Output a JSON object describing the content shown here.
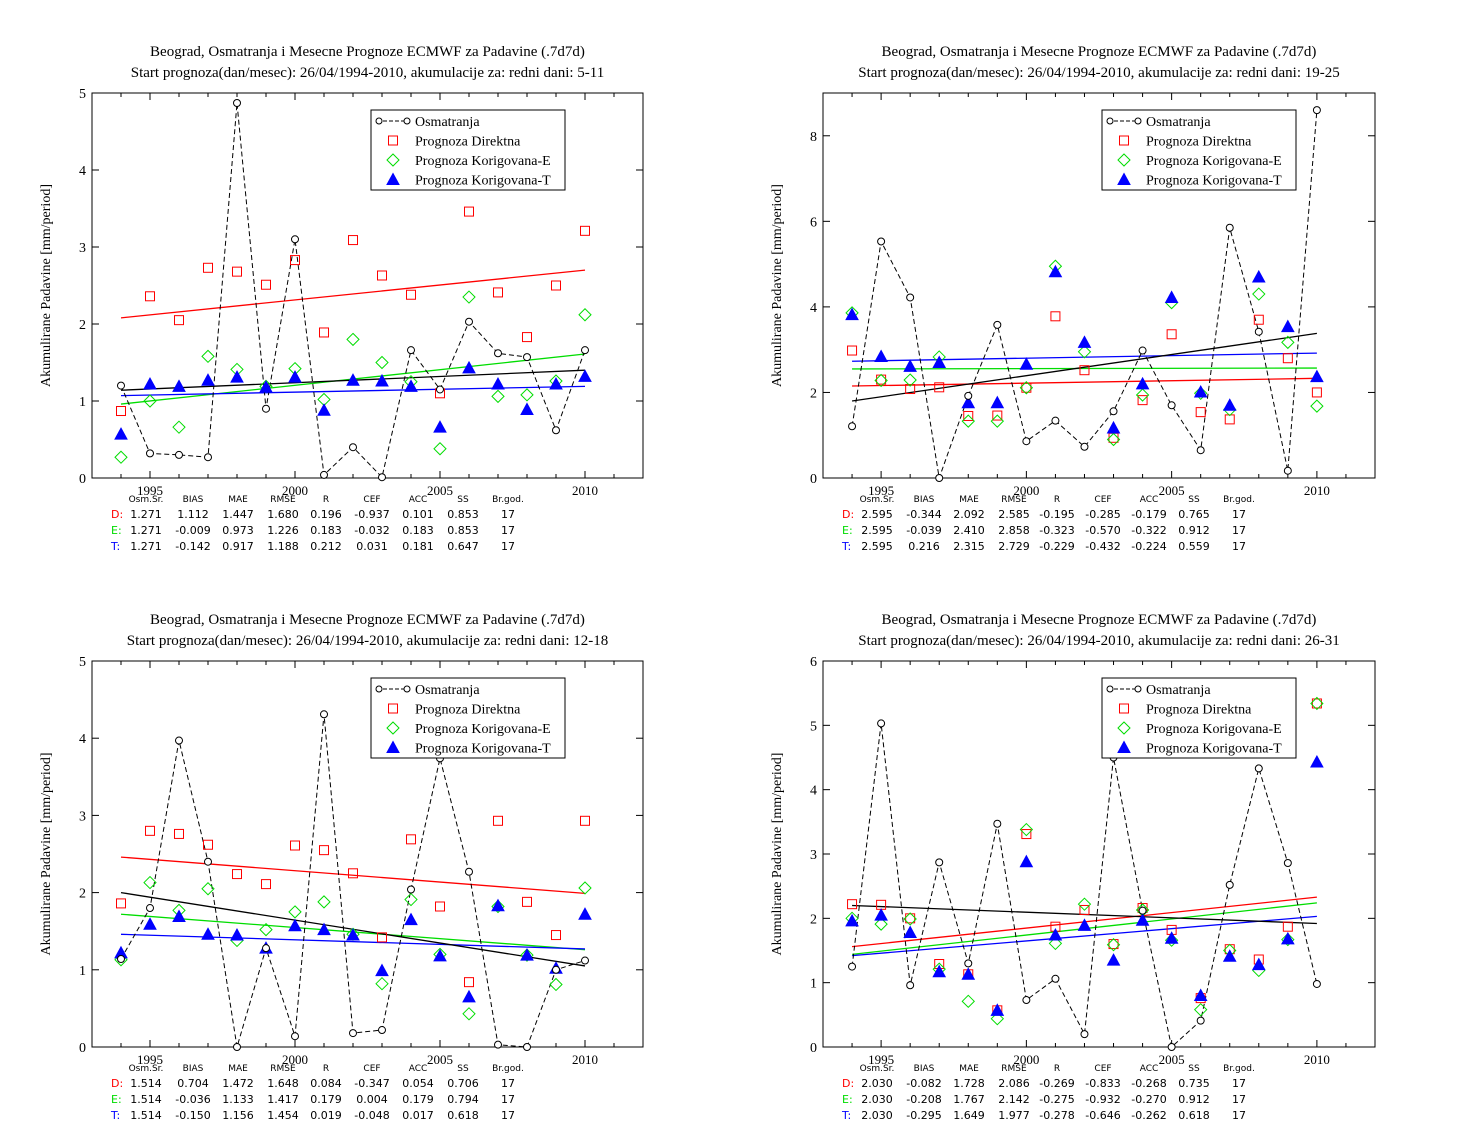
{
  "legend": {
    "obs": "Osmatranja",
    "direct": "Prognoza Direktna",
    "corrE": "Prognoza Korigovana-E",
    "corrT": "Prognoza Korigovana-T"
  },
  "colors": {
    "obs": "#000000",
    "direct": "#ff0000",
    "corrE": "#00dd00",
    "corrT": "#0000ff"
  },
  "stats_header": [
    "Osm.Sr.",
    "BIAS",
    "MAE",
    "RMSE",
    "R",
    "CEF",
    "ACC",
    "SS",
    "Br.god."
  ],
  "chart_data": [
    {
      "type": "scatter",
      "title": "Beograd, Osmatranja i Mesecne Prognoze ECMWF za Padavine (.7d7d)",
      "subtitle": "Start prognoza(dan/mesec): 26/04/1994-2010, akumulacije za: redni dani: 5-11",
      "ylabel": "Akumulirane Padavine [mm/period]",
      "xlim": [
        1993,
        2012
      ],
      "ylim": [
        0,
        5
      ],
      "yticks": [
        0,
        1,
        2,
        3,
        4,
        5
      ],
      "xticks": [
        1995,
        2000,
        2005,
        2010
      ],
      "x": [
        1994,
        1995,
        1996,
        1997,
        1998,
        1999,
        2000,
        2001,
        2002,
        2003,
        2004,
        2005,
        2006,
        2007,
        2008,
        2009,
        2010
      ],
      "series": [
        {
          "name": "Osmatranja",
          "values": [
            1.2,
            0.32,
            0.3,
            0.27,
            4.87,
            0.9,
            3.1,
            0.04,
            0.4,
            0.01,
            1.66,
            1.15,
            2.03,
            1.62,
            1.57,
            0.62,
            1.66
          ]
        },
        {
          "name": "Prognoza Direktna",
          "values": [
            0.87,
            2.36,
            2.05,
            2.73,
            2.68,
            2.51,
            2.83,
            1.89,
            3.09,
            2.63,
            2.38,
            1.1,
            3.46,
            2.41,
            1.83,
            2.5,
            3.21
          ]
        },
        {
          "name": "Prognoza Korigovana-E",
          "values": [
            0.27,
            1.0,
            0.66,
            1.58,
            1.41,
            1.19,
            1.42,
            1.02,
            1.8,
            1.5,
            1.25,
            0.38,
            2.35,
            1.06,
            1.08,
            1.26,
            2.12
          ]
        },
        {
          "name": "Prognoza Korigovana-T",
          "values": [
            0.57,
            1.22,
            1.19,
            1.27,
            1.31,
            1.18,
            1.31,
            0.88,
            1.27,
            1.26,
            1.19,
            0.66,
            1.43,
            1.22,
            0.89,
            1.22,
            1.32
          ]
        }
      ],
      "trends": {
        "obs": [
          1.14,
          1.4
        ],
        "direct": [
          2.08,
          2.7
        ],
        "corrE": [
          0.96,
          1.61
        ],
        "corrT": [
          1.07,
          1.19
        ]
      },
      "stats": [
        {
          "label": "D:",
          "values": [
            "1.271",
            "1.112",
            "1.447",
            "1.680",
            "0.196",
            "-0.937",
            "0.101",
            "0.853",
            "17"
          ]
        },
        {
          "label": "E:",
          "values": [
            "1.271",
            "-0.009",
            "0.973",
            "1.226",
            "0.183",
            "-0.032",
            "0.183",
            "0.853",
            "17"
          ]
        },
        {
          "label": "T:",
          "values": [
            "1.271",
            "-0.142",
            "0.917",
            "1.188",
            "0.212",
            "0.031",
            "0.181",
            "0.647",
            "17"
          ]
        }
      ]
    },
    {
      "type": "scatter",
      "title": "Beograd, Osmatranja i Mesecne Prognoze ECMWF za Padavine (.7d7d)",
      "subtitle": "Start prognoza(dan/mesec): 26/04/1994-2010, akumulacije za: redni dani: 19-25",
      "ylabel": "Akumulirane Padavine [mm/period]",
      "xlim": [
        1993,
        2012
      ],
      "ylim": [
        0,
        9
      ],
      "yticks": [
        0,
        2,
        4,
        6,
        8
      ],
      "xticks": [
        1995,
        2000,
        2005,
        2010
      ],
      "x": [
        1994,
        1995,
        1996,
        1997,
        1998,
        1999,
        2000,
        2001,
        2002,
        2003,
        2004,
        2005,
        2006,
        2007,
        2008,
        2009,
        2010
      ],
      "series": [
        {
          "name": "Osmatranja",
          "values": [
            1.21,
            5.53,
            4.22,
            0.0,
            1.92,
            3.58,
            0.86,
            1.34,
            0.73,
            1.56,
            2.98,
            1.7,
            0.65,
            5.85,
            3.42,
            0.17,
            8.6
          ]
        },
        {
          "name": "Prognoza Direktna",
          "values": [
            2.98,
            2.3,
            2.08,
            2.12,
            1.45,
            1.46,
            2.11,
            3.78,
            2.52,
            0.94,
            1.82,
            3.36,
            1.54,
            1.37,
            3.7,
            2.8,
            2.0
          ]
        },
        {
          "name": "Prognoza Korigovana-E",
          "values": [
            3.86,
            2.28,
            2.29,
            2.83,
            1.33,
            1.33,
            2.11,
            4.95,
            2.95,
            0.9,
            1.94,
            4.1,
            1.98,
            1.6,
            4.3,
            3.17,
            1.68
          ]
        },
        {
          "name": "Prognoza Korigovana-T",
          "values": [
            3.82,
            2.84,
            2.61,
            2.7,
            1.76,
            1.76,
            2.66,
            4.82,
            3.17,
            1.17,
            2.2,
            4.22,
            2.01,
            1.7,
            4.7,
            3.54,
            2.37
          ]
        }
      ],
      "trends": {
        "obs": [
          1.8,
          3.38
        ],
        "direct": [
          2.15,
          2.33
        ],
        "corrE": [
          2.55,
          2.57
        ],
        "corrT": [
          2.73,
          2.92
        ]
      },
      "stats": [
        {
          "label": "D:",
          "values": [
            "2.595",
            "-0.344",
            "2.092",
            "2.585",
            "-0.195",
            "-0.285",
            "-0.179",
            "0.765",
            "17"
          ]
        },
        {
          "label": "E:",
          "values": [
            "2.595",
            "-0.039",
            "2.410",
            "2.858",
            "-0.323",
            "-0.570",
            "-0.322",
            "0.912",
            "17"
          ]
        },
        {
          "label": "T:",
          "values": [
            "2.595",
            "0.216",
            "2.315",
            "2.729",
            "-0.229",
            "-0.432",
            "-0.224",
            "0.559",
            "17"
          ]
        }
      ]
    },
    {
      "type": "scatter",
      "title": "Beograd, Osmatranja i Mesecne Prognoze ECMWF za Padavine (.7d7d)",
      "subtitle": "Start prognoza(dan/mesec): 26/04/1994-2010, akumulacije za: redni dani: 12-18",
      "ylabel": "Akumulirane Padavine [mm/period]",
      "xlim": [
        1993,
        2012
      ],
      "ylim": [
        0,
        5
      ],
      "yticks": [
        0,
        1,
        2,
        3,
        4,
        5
      ],
      "xticks": [
        1995,
        2000,
        2005,
        2010
      ],
      "x": [
        1994,
        1995,
        1996,
        1997,
        1998,
        1999,
        2000,
        2001,
        2002,
        2003,
        2004,
        2005,
        2006,
        2007,
        2008,
        2009,
        2010
      ],
      "series": [
        {
          "name": "Osmatranja",
          "values": [
            1.14,
            1.8,
            3.97,
            2.4,
            0.0,
            1.28,
            0.14,
            4.31,
            0.18,
            0.22,
            2.04,
            3.74,
            2.27,
            0.03,
            0.0,
            1.0,
            1.12
          ]
        },
        {
          "name": "Prognoza Direktna",
          "values": [
            1.86,
            2.8,
            2.76,
            2.62,
            2.24,
            2.11,
            2.61,
            2.55,
            2.25,
            1.42,
            2.69,
            1.82,
            0.84,
            2.93,
            1.88,
            1.45,
            2.93
          ]
        },
        {
          "name": "Prognoza Korigovana-E",
          "values": [
            1.13,
            2.13,
            1.77,
            2.05,
            1.38,
            1.52,
            1.75,
            1.88,
            1.46,
            0.82,
            1.91,
            1.2,
            0.43,
            1.82,
            1.19,
            0.81,
            2.06
          ]
        },
        {
          "name": "Prognoza Korigovana-T",
          "values": [
            1.22,
            1.59,
            1.69,
            1.46,
            1.45,
            1.28,
            1.57,
            1.52,
            1.45,
            0.99,
            1.65,
            1.18,
            0.65,
            1.83,
            1.19,
            1.02,
            1.72
          ]
        }
      ],
      "trends": {
        "obs": [
          2.0,
          1.05
        ],
        "direct": [
          2.46,
          1.99
        ],
        "corrE": [
          1.72,
          1.26
        ],
        "corrT": [
          1.46,
          1.27
        ]
      },
      "stats": [
        {
          "label": "D:",
          "values": [
            "1.514",
            "0.704",
            "1.472",
            "1.648",
            "0.084",
            "-0.347",
            "0.054",
            "0.706",
            "17"
          ]
        },
        {
          "label": "E:",
          "values": [
            "1.514",
            "-0.036",
            "1.133",
            "1.417",
            "0.179",
            "0.004",
            "0.179",
            "0.794",
            "17"
          ]
        },
        {
          "label": "T:",
          "values": [
            "1.514",
            "-0.150",
            "1.156",
            "1.454",
            "0.019",
            "-0.048",
            "0.017",
            "0.618",
            "17"
          ]
        }
      ]
    },
    {
      "type": "scatter",
      "title": "Beograd, Osmatranja i Mesecne Prognoze ECMWF za Padavine (.7d7d)",
      "subtitle": "Start prognoza(dan/mesec): 26/04/1994-2010, akumulacije za: redni dani: 26-31",
      "ylabel": "Akumulirane Padavine [mm/period]",
      "xlim": [
        1993,
        2012
      ],
      "ylim": [
        0,
        6
      ],
      "yticks": [
        0,
        1,
        2,
        3,
        4,
        5,
        6
      ],
      "xticks": [
        1995,
        2000,
        2005,
        2010
      ],
      "x": [
        1994,
        1995,
        1996,
        1997,
        1998,
        1999,
        2000,
        2001,
        2002,
        2003,
        2004,
        2005,
        2006,
        2007,
        2008,
        2009,
        2010
      ],
      "series": [
        {
          "name": "Osmatranja",
          "values": [
            1.25,
            5.03,
            0.96,
            2.87,
            1.3,
            3.47,
            0.73,
            1.06,
            0.2,
            4.5,
            2.12,
            0.0,
            0.41,
            2.52,
            4.33,
            2.86,
            0.98
          ]
        },
        {
          "name": "Prognoza Direktna",
          "values": [
            2.22,
            2.21,
            2.0,
            1.29,
            1.13,
            0.57,
            3.31,
            1.87,
            2.13,
            1.6,
            2.16,
            1.82,
            0.76,
            1.52,
            1.36,
            1.87,
            5.34
          ]
        },
        {
          "name": "Prognoza Korigovana-E",
          "values": [
            2.0,
            1.91,
            1.99,
            1.21,
            0.71,
            0.44,
            3.38,
            1.61,
            2.22,
            1.59,
            2.13,
            1.66,
            0.58,
            1.5,
            1.19,
            1.67,
            5.34
          ]
        },
        {
          "name": "Prognoza Korigovana-T",
          "values": [
            1.96,
            2.05,
            1.78,
            1.17,
            1.13,
            0.57,
            2.88,
            1.74,
            1.89,
            1.35,
            1.97,
            1.69,
            0.8,
            1.41,
            1.28,
            1.68,
            4.43
          ]
        }
      ],
      "trends": {
        "obs": [
          2.2,
          1.92
        ],
        "direct": [
          1.56,
          2.33
        ],
        "corrE": [
          1.44,
          2.24
        ],
        "corrT": [
          1.42,
          2.03
        ]
      },
      "stats": [
        {
          "label": "D:",
          "values": [
            "2.030",
            "-0.082",
            "1.728",
            "2.086",
            "-0.269",
            "-0.833",
            "-0.268",
            "0.735",
            "17"
          ]
        },
        {
          "label": "E:",
          "values": [
            "2.030",
            "-0.208",
            "1.767",
            "2.142",
            "-0.275",
            "-0.932",
            "-0.270",
            "0.912",
            "17"
          ]
        },
        {
          "label": "T:",
          "values": [
            "2.030",
            "-0.295",
            "1.649",
            "1.977",
            "-0.278",
            "-0.646",
            "-0.262",
            "0.618",
            "17"
          ]
        }
      ]
    }
  ]
}
